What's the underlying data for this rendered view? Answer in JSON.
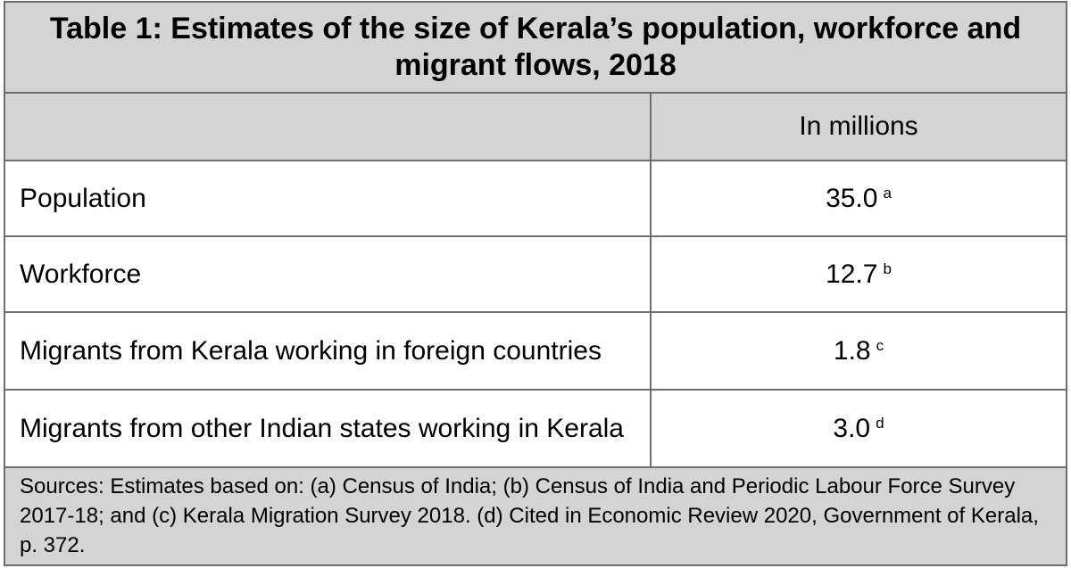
{
  "table": {
    "title": "Table 1: Estimates of the size of Kerala’s population, workforce and migrant flows, 2018",
    "column_header": "In millions",
    "rows": [
      {
        "label": "Population",
        "value": "35.0",
        "note": "a"
      },
      {
        "label": "Workforce",
        "value": "12.7",
        "note": "b"
      },
      {
        "label": "Migrants from Kerala working in foreign countries",
        "value": "1.8",
        "note": "c"
      },
      {
        "label": "Migrants from other Indian states working in Kerala",
        "value": "3.0",
        "note": "d"
      }
    ],
    "sources": "Sources: Estimates based on: (a) Census of India; (b) Census of India and Periodic Labour Force Survey 2017-18; and (c) Kerala Migration Survey 2018. (d) Cited in Economic Review 2020, Government of Kerala, p. 372."
  },
  "colors": {
    "header_bg": "#d4d4d4",
    "border": "#6e6e6e",
    "body_bg": "#ffffff"
  }
}
